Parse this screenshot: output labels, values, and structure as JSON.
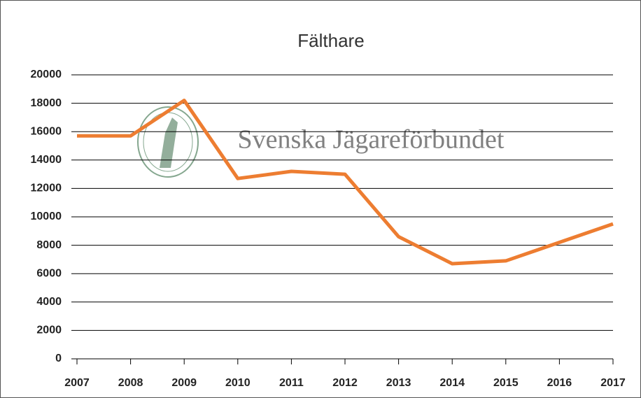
{
  "chart_data": {
    "type": "line",
    "title": "Fälthare",
    "watermark": "Svenska Jägareförbundet",
    "x": [
      2007,
      2008,
      2009,
      2010,
      2011,
      2012,
      2013,
      2014,
      2015,
      2016,
      2017
    ],
    "series": [
      {
        "name": "Fälthare",
        "color": "#ed7d31",
        "values": [
          15700,
          15700,
          18200,
          12700,
          13200,
          13000,
          8600,
          6700,
          6900,
          8200,
          9500
        ]
      }
    ],
    "xlim": [
      2007,
      2017
    ],
    "xticks": [
      2007,
      2008,
      2009,
      2010,
      2011,
      2012,
      2013,
      2014,
      2015,
      2016,
      2017
    ],
    "ylim": [
      0,
      20000
    ],
    "yticks": [
      0,
      2000,
      4000,
      6000,
      8000,
      10000,
      12000,
      14000,
      16000,
      18000,
      20000
    ],
    "grid": true,
    "legend": false
  }
}
